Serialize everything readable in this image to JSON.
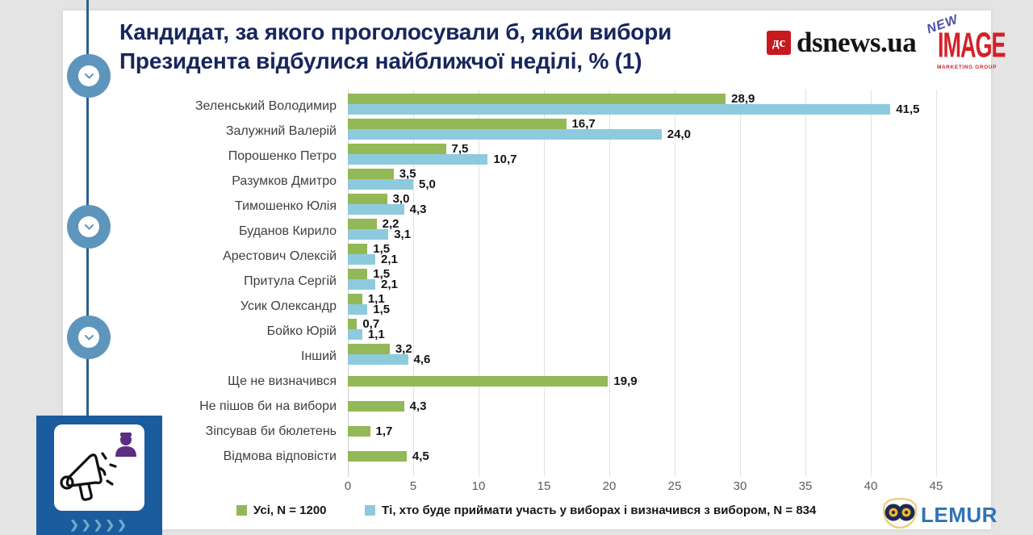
{
  "header": {
    "title_line1": "Кандидат, за якого проголосували б, якби вибори",
    "title_line2": "Президента відбулися найближчої неділі, % (1)"
  },
  "logos": {
    "dsnews": {
      "badge": "дс",
      "text": "dsnews.ua"
    },
    "newimage": {
      "word1": "NEW",
      "word2": "IMAGE",
      "word3": "MARKETING GROUP"
    },
    "lemur": {
      "text": "LEMUR"
    }
  },
  "rail": {
    "chevrons": "❯❯❯❯❯"
  },
  "colors": {
    "title": "#17265d",
    "series_all": "#93b857",
    "series_voters": "#8ecadd",
    "rail_line": "#2e6091",
    "rail_button": "#5e95bd",
    "promo_box": "#1b5c9e",
    "dsnews_red": "#c8191e",
    "newimage_red": "#d42027",
    "lemur_blue": "#2e74b5"
  },
  "chart_data": {
    "type": "bar",
    "orientation": "horizontal",
    "title": "Кандидат, за якого проголосували б, якби вибори Президента відбулися найближчої неділі, % (1)",
    "categories": [
      "Зеленський Володимир",
      "Залужний Валерій",
      "Порошенко Петро",
      "Разумков Дмитро",
      "Тимошенко Юлія",
      "Буданов Кирило",
      "Арестович Олексій",
      "Притула Сергій",
      "Усик Олександр",
      "Бойко Юрій",
      "Інший",
      "Ще не визначився",
      "Не пішов би на вибори",
      "Зіпсував би бюлетень",
      "Відмова відповісти"
    ],
    "series": [
      {
        "name": "Усі, N = 1200",
        "color": "#93b857",
        "values": [
          28.9,
          16.7,
          7.5,
          3.5,
          3.0,
          2.2,
          1.5,
          1.5,
          1.1,
          0.7,
          3.2,
          19.9,
          4.3,
          1.7,
          4.5
        ]
      },
      {
        "name": "Ті, хто буде приймати участь у виборах і визначився з вибором, N = 834",
        "color": "#8ecadd",
        "values": [
          41.5,
          24.0,
          10.7,
          5.0,
          4.3,
          3.1,
          2.1,
          2.1,
          1.5,
          1.1,
          4.6,
          null,
          null,
          null,
          null
        ]
      }
    ],
    "xticks": [
      0,
      5,
      10,
      15,
      20,
      25,
      30,
      35,
      40,
      45
    ],
    "xlim": [
      0,
      45
    ],
    "grid": true,
    "legend_position": "bottom",
    "decimal_separator": ","
  }
}
